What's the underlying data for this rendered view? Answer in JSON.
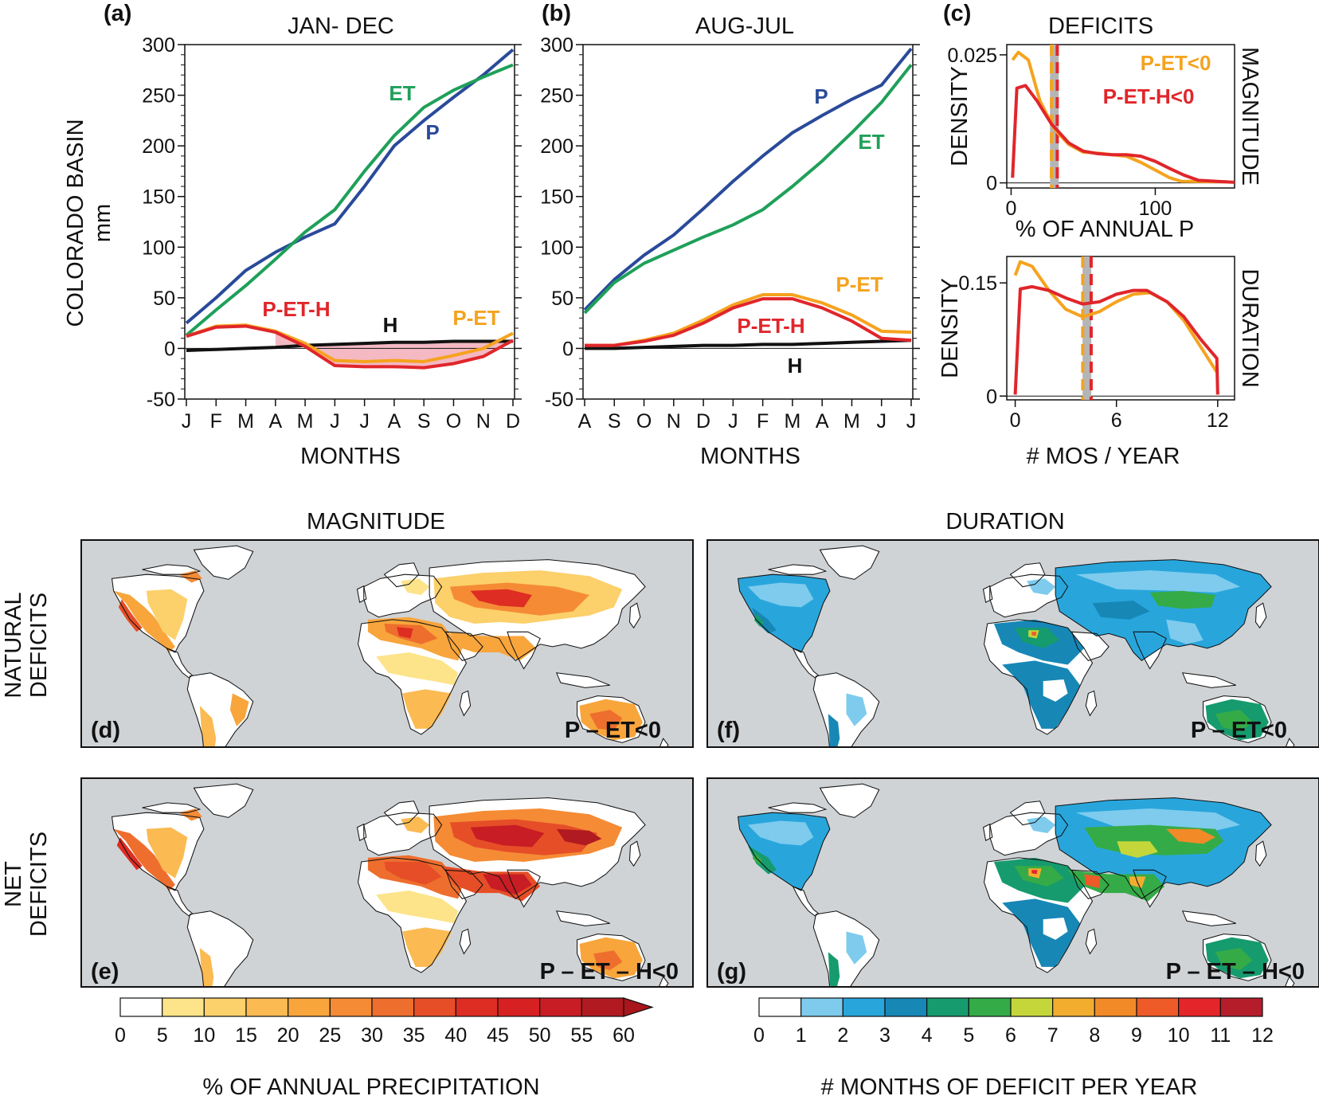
{
  "chart_data": [
    {
      "id": "a",
      "type": "line",
      "panel_label": "(a)",
      "title": "JAN- DEC",
      "xlabel": "MONTHS",
      "ylabel": "COLORADO BASIN",
      "yunit": "mm",
      "categories": [
        "J",
        "F",
        "M",
        "A",
        "M",
        "J",
        "J",
        "A",
        "S",
        "O",
        "N",
        "D"
      ],
      "ylim": [
        -50,
        300
      ],
      "yticks": [
        -50,
        0,
        50,
        100,
        150,
        200,
        250,
        300
      ],
      "series": [
        {
          "name": "P",
          "color": "#2a4a9a",
          "values": [
            25,
            50,
            77,
            95,
            110,
            123,
            160,
            200,
            225,
            248,
            270,
            295
          ]
        },
        {
          "name": "ET",
          "color": "#1fa05a",
          "values": [
            13,
            38,
            62,
            88,
            115,
            137,
            175,
            210,
            238,
            255,
            268,
            280
          ]
        },
        {
          "name": "H",
          "color": "#111111",
          "values": [
            -2,
            -1,
            0,
            1,
            3,
            4,
            5,
            6,
            6,
            7,
            7,
            7
          ]
        },
        {
          "name": "P-ET",
          "color": "#f5a31e",
          "values": [
            12,
            22,
            23,
            17,
            5,
            -12,
            -13,
            -12,
            -13,
            -7,
            0,
            15
          ]
        },
        {
          "name": "P-ET-H",
          "color": "#e0262b",
          "values": [
            12,
            21,
            22,
            16,
            2,
            -17,
            -18,
            -18,
            -19,
            -15,
            -8,
            8
          ]
        }
      ],
      "labels": {
        "ET": "ET",
        "P": "P",
        "PETH": "P-ET-H",
        "H": "H",
        "PET": "P-ET"
      }
    },
    {
      "id": "b",
      "type": "line",
      "panel_label": "(b)",
      "title": "AUG-JUL",
      "xlabel": "MONTHS",
      "categories": [
        "A",
        "S",
        "O",
        "N",
        "D",
        "J",
        "F",
        "M",
        "A",
        "M",
        "J",
        "J"
      ],
      "ylim": [
        -50,
        300
      ],
      "yticks": [
        -50,
        0,
        50,
        100,
        150,
        200,
        250,
        300
      ],
      "series": [
        {
          "name": "P",
          "color": "#2a4a9a",
          "values": [
            38,
            68,
            92,
            112,
            138,
            165,
            190,
            213,
            230,
            246,
            260,
            296
          ]
        },
        {
          "name": "ET",
          "color": "#1fa05a",
          "values": [
            35,
            65,
            84,
            97,
            110,
            122,
            137,
            160,
            185,
            213,
            243,
            280
          ]
        },
        {
          "name": "H",
          "color": "#111111",
          "values": [
            0,
            0,
            1,
            2,
            3,
            3,
            4,
            4,
            5,
            6,
            7,
            8
          ]
        },
        {
          "name": "P-ET",
          "color": "#f5a31e",
          "values": [
            3,
            3,
            8,
            15,
            28,
            43,
            53,
            53,
            45,
            33,
            17,
            16
          ]
        },
        {
          "name": "P-ET-H",
          "color": "#e0262b",
          "values": [
            3,
            3,
            7,
            13,
            25,
            40,
            49,
            49,
            40,
            27,
            10,
            8
          ]
        }
      ],
      "labels": {
        "P": "P",
        "ET": "ET",
        "PET": "P-ET",
        "PETH": "P-ET-H",
        "H": "H"
      }
    },
    {
      "id": "c-top",
      "type": "line",
      "panel_label": "(c)",
      "title": "DEFICITS",
      "side_label": "MAGNITUDE",
      "xlabel": "% OF ANNUAL P",
      "ylabel": "DENSITY",
      "xlim": [
        -3,
        155
      ],
      "xticks": [
        0,
        100
      ],
      "ylim": [
        -0.001,
        0.027
      ],
      "yticks": [
        0,
        0.025
      ],
      "ytick_labels": [
        "0",
        "0.025"
      ],
      "means": {
        "P-ET<0": 28,
        "P-ET-H<0": 32
      },
      "legend": [
        "P-ET<0",
        "P-ET-H<0"
      ],
      "series": [
        {
          "name": "P-ET<0",
          "color": "#f5a31e",
          "x": [
            1,
            5,
            12,
            20,
            30,
            40,
            50,
            60,
            70,
            80,
            90,
            100,
            110,
            118,
            150
          ],
          "y": [
            0.024,
            0.0255,
            0.024,
            0.016,
            0.0105,
            0.0075,
            0.006,
            0.0058,
            0.0055,
            0.0052,
            0.004,
            0.0025,
            0.001,
            0.0003,
            0.0002
          ]
        },
        {
          "name": "P-ET-H<0",
          "color": "#e0262b",
          "x": [
            1,
            4,
            10,
            18,
            28,
            40,
            50,
            60,
            70,
            80,
            90,
            100,
            110,
            120,
            130,
            155
          ],
          "y": [
            0.001,
            0.0185,
            0.019,
            0.016,
            0.0115,
            0.0078,
            0.0062,
            0.0057,
            0.0055,
            0.0055,
            0.0052,
            0.0042,
            0.0028,
            0.0015,
            0.0005,
            0.0001
          ]
        }
      ]
    },
    {
      "id": "c-bottom",
      "type": "line",
      "side_label": "DURATION",
      "xlabel": "# MOS / YEAR",
      "ylabel": "DENSITY",
      "xlim": [
        -0.5,
        13
      ],
      "xticks": [
        0,
        6,
        12
      ],
      "ylim": [
        -0.005,
        0.185
      ],
      "yticks": [
        0,
        0.15
      ],
      "ytick_labels": [
        "0",
        "0.15"
      ],
      "means": {
        "P-ET<0": 4.0,
        "P-ET-H<0": 4.5
      },
      "series": [
        {
          "name": "P-ET<0",
          "color": "#f5a31e",
          "x": [
            0,
            0.3,
            1,
            2,
            3,
            4,
            5,
            6,
            7,
            8,
            9,
            10,
            11,
            12
          ],
          "y": [
            0.16,
            0.178,
            0.172,
            0.14,
            0.115,
            0.105,
            0.112,
            0.125,
            0.135,
            0.137,
            0.125,
            0.1,
            0.065,
            0.03
          ]
        },
        {
          "name": "P-ET-H<0",
          "color": "#e0262b",
          "x": [
            0,
            0.3,
            1,
            2,
            3,
            4,
            5,
            6,
            7,
            7.8,
            9,
            10,
            11,
            11.95,
            12
          ],
          "y": [
            0.002,
            0.142,
            0.145,
            0.14,
            0.13,
            0.122,
            0.125,
            0.135,
            0.14,
            0.14,
            0.125,
            0.105,
            0.075,
            0.05,
            0.002
          ]
        }
      ]
    }
  ],
  "maps": {
    "col_titles": [
      "MAGNITUDE",
      "DURATION"
    ],
    "row_labels": [
      [
        "NATURAL",
        "DEFICITS"
      ],
      [
        "NET",
        "DEFICITS"
      ]
    ],
    "panels": [
      {
        "label": "(d)",
        "condition": "P – ET<0"
      },
      {
        "label": "(f)",
        "condition": "P – ET<0"
      },
      {
        "label": "(e)",
        "condition": "P – ET – H<0"
      },
      {
        "label": "(g)",
        "condition": "P – ET – H<0"
      }
    ]
  },
  "colorbars": [
    {
      "title": "% OF ANNUAL PRECIPITATION",
      "ticks": [
        "0",
        "5",
        "10",
        "15",
        "20",
        "25",
        "30",
        "35",
        "40",
        "45",
        "50",
        "55",
        "60"
      ],
      "colors": [
        "#ffffff",
        "#fde48a",
        "#fcd06a",
        "#fbba52",
        "#f8a53c",
        "#f58b35",
        "#ee6e2d",
        "#e64e27",
        "#de2d22",
        "#d62021",
        "#c81d24",
        "#b01a20"
      ],
      "extend_color": "#a9161c"
    },
    {
      "title": "# MONTHS OF DEFICIT PER YEAR",
      "ticks": [
        "0",
        "1",
        "2",
        "3",
        "4",
        "5",
        "6",
        "7",
        "8",
        "9",
        "10",
        "11",
        "12"
      ],
      "colors": [
        "#ffffff",
        "#7ecbee",
        "#28a6dc",
        "#1787b6",
        "#169b6e",
        "#35ab47",
        "#c5d63a",
        "#f2ad2f",
        "#f28a28",
        "#ee5a28",
        "#e4262a",
        "#b51d2b"
      ]
    }
  ],
  "colors": {
    "ocean": "#d0d3d6",
    "land_outline": "#111111"
  }
}
